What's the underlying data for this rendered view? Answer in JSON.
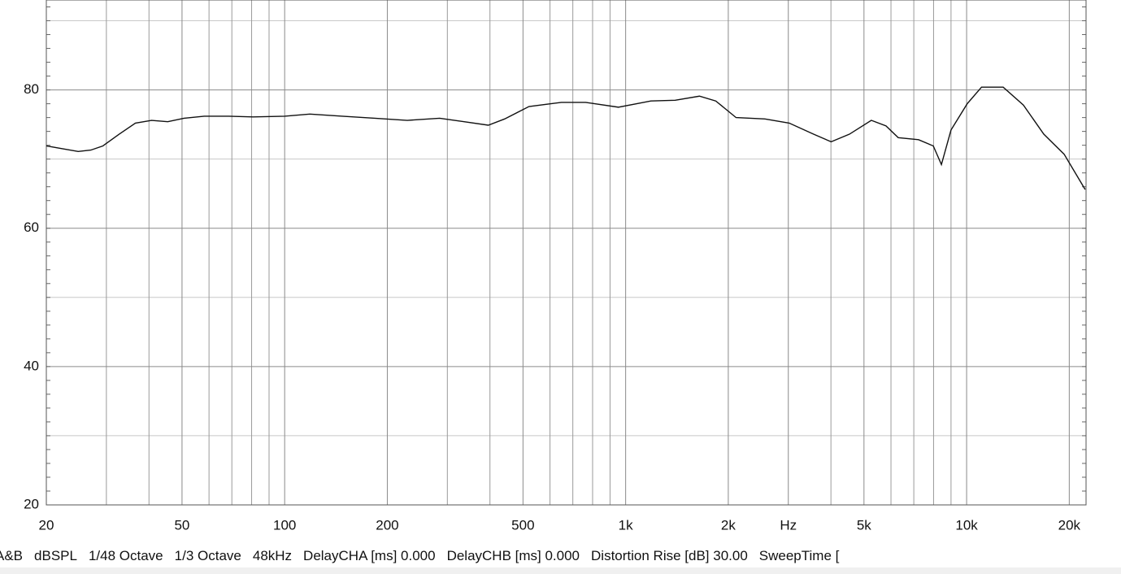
{
  "chart_data": {
    "type": "line",
    "xscale": "log",
    "x": [
      20,
      22.3,
      24.8,
      27,
      29.3,
      32.7,
      36.5,
      40.7,
      45.4,
      50.7,
      58.1,
      68.5,
      80.8,
      100,
      118.5,
      147.6,
      183.8,
      228.9,
      284.8,
      336,
      395.6,
      441.6,
      520.6,
      647.8,
      763.2,
      952.6,
      1186,
      1397,
      1646,
      1838,
      2108,
      2562,
      3018,
      3557,
      4006,
      4532,
      5254,
      5802,
      6301,
      7228,
      7985,
      8435,
      9000,
      10040,
      11060,
      12800,
      14680,
      16840,
      19320,
      22270
    ],
    "series": [
      {
        "color": "#111111",
        "values": [
          71.9,
          71.5,
          71.1,
          71.3,
          71.9,
          73.6,
          75.2,
          75.6,
          75.4,
          75.9,
          76.2,
          76.2,
          76.1,
          76.2,
          76.5,
          76.2,
          75.9,
          75.6,
          75.9,
          75.4,
          74.9,
          75.8,
          77.6,
          78.2,
          78.2,
          77.5,
          78.4,
          78.5,
          79.1,
          78.4,
          76.0,
          75.8,
          75.2,
          73.6,
          72.5,
          73.6,
          75.6,
          74.8,
          73.1,
          72.8,
          71.9,
          69.2,
          74.2,
          78.0,
          80.4,
          80.4,
          77.8,
          73.6,
          70.7,
          65.6
        ]
      }
    ],
    "xlim": [
      20,
      22400
    ],
    "ylim": [
      20,
      93
    ],
    "xticks": [
      20,
      50,
      100,
      200,
      500,
      {
        "value": 1000,
        "label": "1k"
      },
      {
        "value": 2000,
        "label": "2k"
      },
      {
        "value": 3000,
        "label": "Hz"
      },
      {
        "value": 5000,
        "label": "5k"
      },
      {
        "value": 10000,
        "label": "10k"
      },
      {
        "value": 20000,
        "label": "20k"
      }
    ],
    "xminor": [
      30,
      40,
      60,
      70,
      80,
      90,
      300,
      400,
      600,
      700,
      800,
      900,
      4000,
      6000,
      7000,
      8000,
      9000
    ],
    "yticks": [
      20,
      40,
      60,
      80
    ],
    "yminor": [
      30,
      50,
      70,
      90
    ],
    "grid": true
  },
  "status_bar": [
    "A&B",
    "dBSPL",
    "1/48 Octave",
    "1/3 Octave",
    "48kHz",
    "DelayCHA [ms] 0.000",
    "DelayCHB [ms] 0.000",
    "Distortion Rise [dB] 30.00",
    "SweepTime ["
  ]
}
